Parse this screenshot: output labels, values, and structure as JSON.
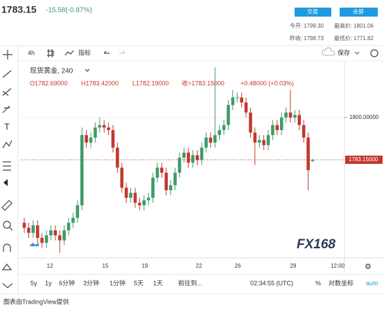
{
  "header": {
    "price": "1783.15",
    "change": "-15.58(-0.87%)",
    "buttons": [
      "交易",
      "全屏"
    ],
    "stats": [
      [
        "今开:",
        "1799.30",
        "最高价:",
        "1801.06"
      ],
      [
        "昨收:",
        "1798.73",
        "最低价:",
        "1771.82"
      ]
    ]
  },
  "toolbar": {
    "interval": "4h",
    "indicators": "指标",
    "save": "保存"
  },
  "legend": {
    "symbol": "现货黄金, 240",
    "open": "O1782.69000",
    "high": "H1783.42000",
    "low": "L1782.19000",
    "close": "收=1783.15000",
    "change": "+0.48000 (+0.03%)"
  },
  "chart_data": {
    "type": "candlestick",
    "up_color": "#3f9a6a",
    "down_color": "#c2392e",
    "opens": [
      1758,
      1756,
      1754,
      1757,
      1752,
      1750,
      1753,
      1755,
      1753,
      1751,
      1755,
      1758,
      1760,
      1765,
      1793,
      1790,
      1792,
      1796,
      1797,
      1796,
      1795,
      1788,
      1780,
      1772,
      1768,
      1770,
      1766,
      1765,
      1767,
      1768,
      1776,
      1780,
      1778,
      1771,
      1773,
      1778,
      1784,
      1786,
      1782,
      1785,
      1783,
      1788,
      1792,
      1790,
      1793,
      1795,
      1797,
      1805,
      1808,
      1808,
      1806,
      1802,
      1794,
      1790,
      1791,
      1789,
      1793,
      1797,
      1795,
      1800,
      1802,
      1800,
      1801,
      1797,
      1792,
      1782.69
    ],
    "highs": [
      1760,
      1758,
      1759,
      1759,
      1754,
      1755,
      1757,
      1757,
      1755,
      1757,
      1760,
      1762,
      1767,
      1796,
      1795,
      1794,
      1798,
      1800,
      1799,
      1798,
      1797,
      1790,
      1782,
      1774,
      1772,
      1772,
      1768,
      1769,
      1770,
      1778,
      1782,
      1782,
      1780,
      1775,
      1780,
      1786,
      1788,
      1788,
      1787,
      1787,
      1790,
      1794,
      1794,
      1820,
      1797,
      1799,
      1807,
      1811,
      1810,
      1810,
      1808,
      1804,
      1796,
      1793,
      1793,
      1795,
      1799,
      1799,
      1802,
      1804,
      1811,
      1803,
      1803,
      1799,
      1794,
      1783.42
    ],
    "lows": [
      1754,
      1752,
      1752,
      1750,
      1748,
      1748,
      1751,
      1751,
      1746,
      1749,
      1753,
      1756,
      1758,
      1763,
      1788,
      1788,
      1790,
      1794,
      1794,
      1793,
      1786,
      1778,
      1770,
      1766,
      1766,
      1764,
      1763,
      1763,
      1765,
      1766,
      1774,
      1776,
      1769,
      1769,
      1771,
      1776,
      1782,
      1780,
      1780,
      1781,
      1781,
      1786,
      1788,
      1788,
      1791,
      1793,
      1795,
      1803,
      1806,
      1804,
      1800,
      1792,
      1781,
      1788,
      1787,
      1787,
      1791,
      1793,
      1793,
      1798,
      1798,
      1798,
      1795,
      1790,
      1771,
      1782.19
    ],
    "closes": [
      1756,
      1754,
      1757,
      1752,
      1750,
      1753,
      1755,
      1753,
      1751,
      1755,
      1758,
      1760,
      1765,
      1793,
      1790,
      1792,
      1796,
      1797,
      1796,
      1795,
      1788,
      1780,
      1772,
      1768,
      1770,
      1766,
      1765,
      1767,
      1768,
      1776,
      1780,
      1778,
      1771,
      1773,
      1778,
      1784,
      1786,
      1782,
      1785,
      1783,
      1788,
      1792,
      1790,
      1793,
      1795,
      1797,
      1805,
      1808,
      1808,
      1806,
      1802,
      1794,
      1790,
      1791,
      1789,
      1793,
      1797,
      1795,
      1800,
      1802,
      1800,
      1801,
      1797,
      1792,
      1779,
      1783.15
    ],
    "ylim": [
      1744.8,
      1821.5
    ],
    "yticks": [
      {
        "value": 1800,
        "label": "1800.00000"
      }
    ],
    "last_price": {
      "value": 1783.15,
      "label": "1783.15000"
    },
    "x_labels": [
      "12",
      "15",
      "19",
      "22",
      "26",
      "29",
      "12:00"
    ]
  },
  "bottom_bar": {
    "ranges": [
      "5y",
      "1y",
      "6分钟",
      "3分钟",
      "1分钟",
      "5天",
      "1天"
    ],
    "goto": "前往到...",
    "time": "02:34:55 (UTC)",
    "percent": "%",
    "log": "对数坐标",
    "auto": "auto"
  },
  "footer": "图表由TradingView提供",
  "logo": "FX168"
}
